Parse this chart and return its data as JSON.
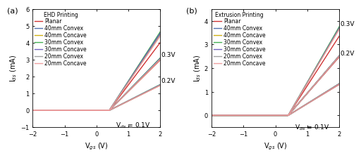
{
  "panel_a_title": "EHD Printing",
  "panel_b_title": "Extrusion Printing",
  "xlabel": "V$_{gs}$ (V)",
  "ylabel": "I$_{ds}$ (mA)",
  "panel_labels": [
    "(a)",
    "(b)"
  ],
  "legend_labels": [
    "Planar",
    "40mm Convex",
    "40mm Concave",
    "30mm Convex",
    "30mm Concave",
    "20mm Convex",
    "20mm Concave"
  ],
  "colors": [
    "#cc2222",
    "#4466aa",
    "#ccaa00",
    "#33aa44",
    "#6655bb",
    "#999999",
    "#ee9999"
  ],
  "vgs_threshold": 0.4,
  "vgs_start": -2.0,
  "vgs_end": 2.0,
  "panel_a": {
    "slopes_01": [
      0.93,
      0.95,
      0.94,
      0.96,
      0.95,
      0.94,
      0.93
    ],
    "slopes_02": [
      1.87,
      1.92,
      1.9,
      1.95,
      1.93,
      1.91,
      1.89
    ],
    "slopes_03": [
      2.52,
      2.85,
      2.8,
      2.92,
      2.87,
      2.8,
      2.76
    ],
    "ylim": [
      -1.0,
      6.0
    ],
    "yticks": [
      -1,
      0,
      1,
      2,
      3,
      4,
      5,
      6
    ],
    "ann_vds_text": "V$_{ds}$ = 0.1V",
    "ann_vds_x": 1.15,
    "ann_vds_y": -0.6,
    "ann_02_text": "0.2V",
    "ann_02_x": 2.02,
    "ann_02_y": 1.55,
    "ann_03_text": "0.3V",
    "ann_03_x": 2.02,
    "ann_03_y": 3.1
  },
  "panel_b": {
    "slopes_01": [
      0.82,
      0.84,
      0.84,
      0.84,
      0.84,
      0.83,
      0.83
    ],
    "slopes_02": [
      1.55,
      1.58,
      1.58,
      1.58,
      1.58,
      1.57,
      1.57
    ],
    "slopes_03": [
      2.1,
      2.32,
      2.32,
      2.35,
      2.32,
      2.3,
      2.28
    ],
    "ylim": [
      -0.5,
      4.5
    ],
    "yticks": [
      0,
      1,
      2,
      3,
      4
    ],
    "ann_vds_text": "V$_{ds}$ = 0.1V",
    "ann_vds_x": 1.15,
    "ann_vds_y": -0.3,
    "ann_02_text": "0.2V",
    "ann_02_x": 2.02,
    "ann_02_y": 2.5,
    "ann_03_text": "0.3V",
    "ann_03_x": 2.02,
    "ann_03_y": 3.75
  },
  "xlim": [
    -2.0,
    2.0
  ],
  "xticks": [
    -2,
    -1,
    0,
    1,
    2
  ],
  "linewidth": 1.0,
  "fontsize_label": 7,
  "fontsize_tick": 6,
  "fontsize_legend": 5.5,
  "fontsize_annot": 6.5,
  "fontsize_panel": 8
}
